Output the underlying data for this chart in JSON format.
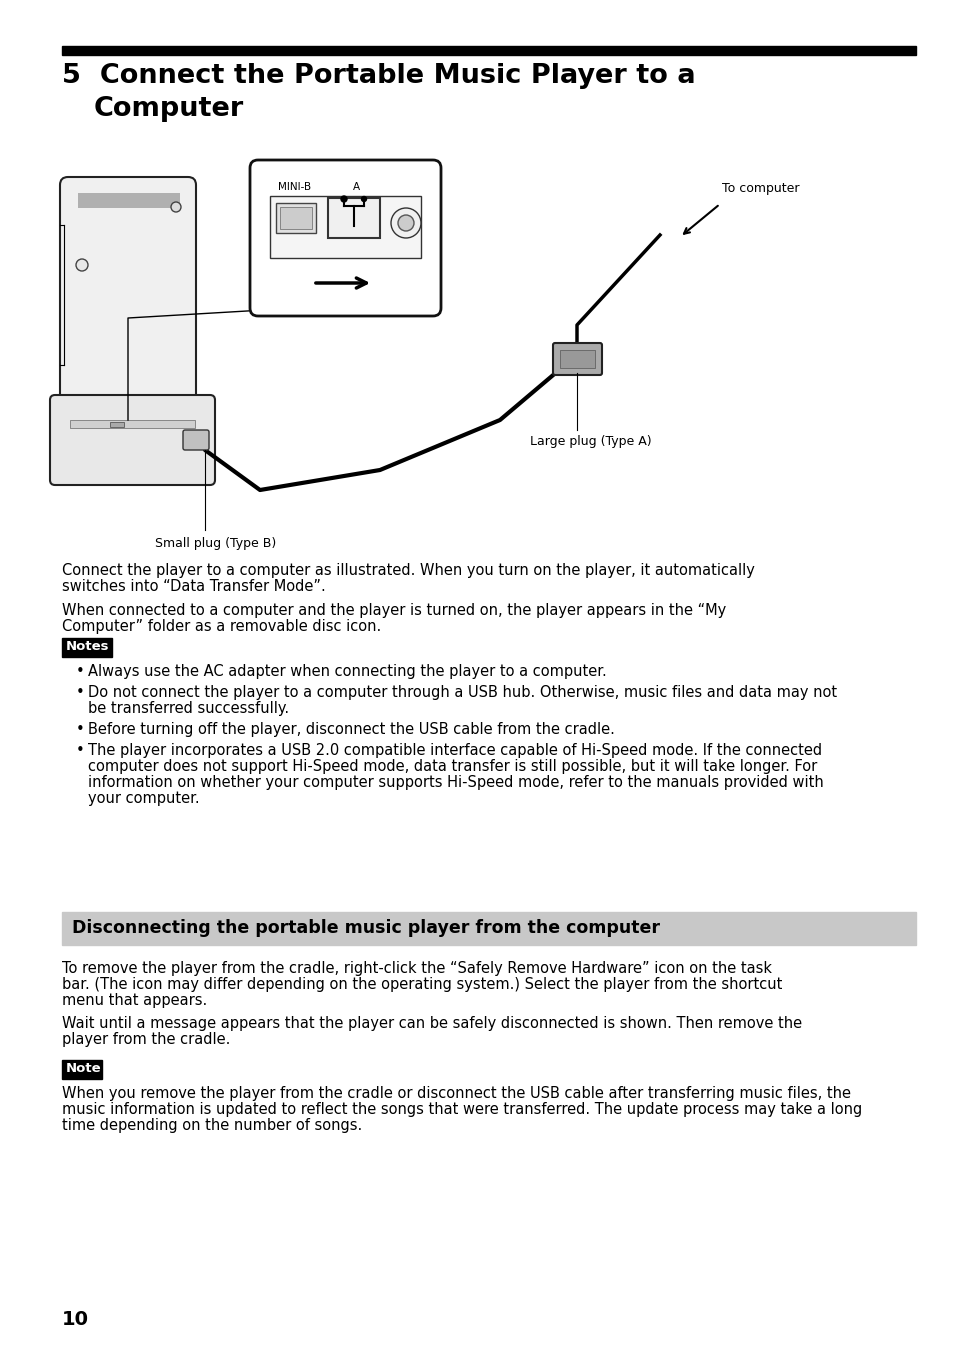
{
  "bg_color": "#ffffff",
  "top_bar_color": "#000000",
  "section_header_bg": "#c8c8c8",
  "section_header_text": "Disconnecting the portable music player from the computer",
  "notes_label_bg": "#000000",
  "notes_label_text": "Notes",
  "note_label_bg": "#000000",
  "note_label_text": "Note",
  "page_number": "10",
  "title_line1": "5  Connect the Portable Music Player to a",
  "title_line2": "    Computer",
  "para1_line1": "Connect the player to a computer as illustrated. When you turn on the player, it automatically",
  "para1_line2": "switches into “Data Transfer Mode”.",
  "para2_line1": "When connected to a computer and the player is turned on, the player appears in the “My",
  "para2_line2": "Computer” folder as a removable disc icon.",
  "bullet1": "Always use the AC adapter when connecting the player to a computer.",
  "bullet2_line1": "Do not connect the player to a computer through a USB hub. Otherwise, music files and data may not",
  "bullet2_line2": "be transferred successfully.",
  "bullet3": "Before turning off the player, disconnect the USB cable from the cradle.",
  "bullet4_line1": "The player incorporates a USB 2.0 compatible interface capable of Hi-Speed mode. If the connected",
  "bullet4_line2": "computer does not support Hi-Speed mode, data transfer is still possible, but it will take longer. For",
  "bullet4_line3": "information on whether your computer supports Hi-Speed mode, refer to the manuals provided with",
  "bullet4_line4": "your computer.",
  "disc_para1_line1": "To remove the player from the cradle, right-click the “Safely Remove Hardware” icon on the task",
  "disc_para1_line2": "bar. (The icon may differ depending on the operating system.) Select the player from the shortcut",
  "disc_para1_line3": "menu that appears.",
  "disc_para2_line1": "Wait until a message appears that the player can be safely disconnected is shown. Then remove the",
  "disc_para2_line2": "player from the cradle.",
  "note_line1": "When you remove the player from the cradle or disconnect the USB cable after transferring music files, the",
  "note_line2": "music information is updated to reflect the songs that were transferred. The update process may take a long",
  "note_line3": "time depending on the number of songs.",
  "label_small_plug": "Small plug (Type B)",
  "label_large_plug": "Large plug (Type A)",
  "label_to_computer": "To computer",
  "label_mini_b": "MINI-B",
  "label_a": "A"
}
